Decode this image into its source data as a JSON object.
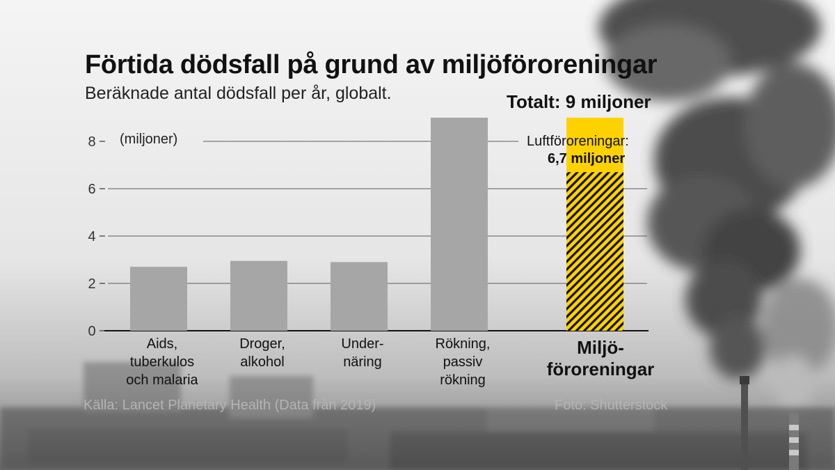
{
  "title": "Förtida dödsfall på grund av miljöföroreningar",
  "subtitle": "Beräknade antal dödsfall per år, globalt.",
  "total_label": "Totalt: 9 miljoner",
  "annotation": {
    "line1": "Luftföroreningar:",
    "line2": "6,7 miljoner"
  },
  "unit_label": "(miljoner)",
  "source": "Källa: Lancet Planetary Health (Data från 2019)",
  "photo_credit": "Foto: Shutterstock",
  "colors": {
    "bar": "#a6a6a6",
    "highlight": "#fed200",
    "hatch": "#111111"
  },
  "chart_data": {
    "type": "bar",
    "categories": [
      [
        "Aids,",
        "tuberkulos",
        "och malaria"
      ],
      [
        "Droger,",
        "alkohol"
      ],
      [
        "Under-",
        "näring"
      ],
      [
        "Rökning,",
        "passiv",
        "rökning"
      ],
      [
        "Miljö-",
        "föroreningar"
      ]
    ],
    "values": [
      2.7,
      2.95,
      2.9,
      9.0,
      9.0
    ],
    "highlight_index": 4,
    "highlight_hatched_part": 6.7,
    "yticks": [
      0,
      2,
      4,
      6,
      8
    ],
    "ylim": [
      0,
      9
    ],
    "grid": true
  }
}
